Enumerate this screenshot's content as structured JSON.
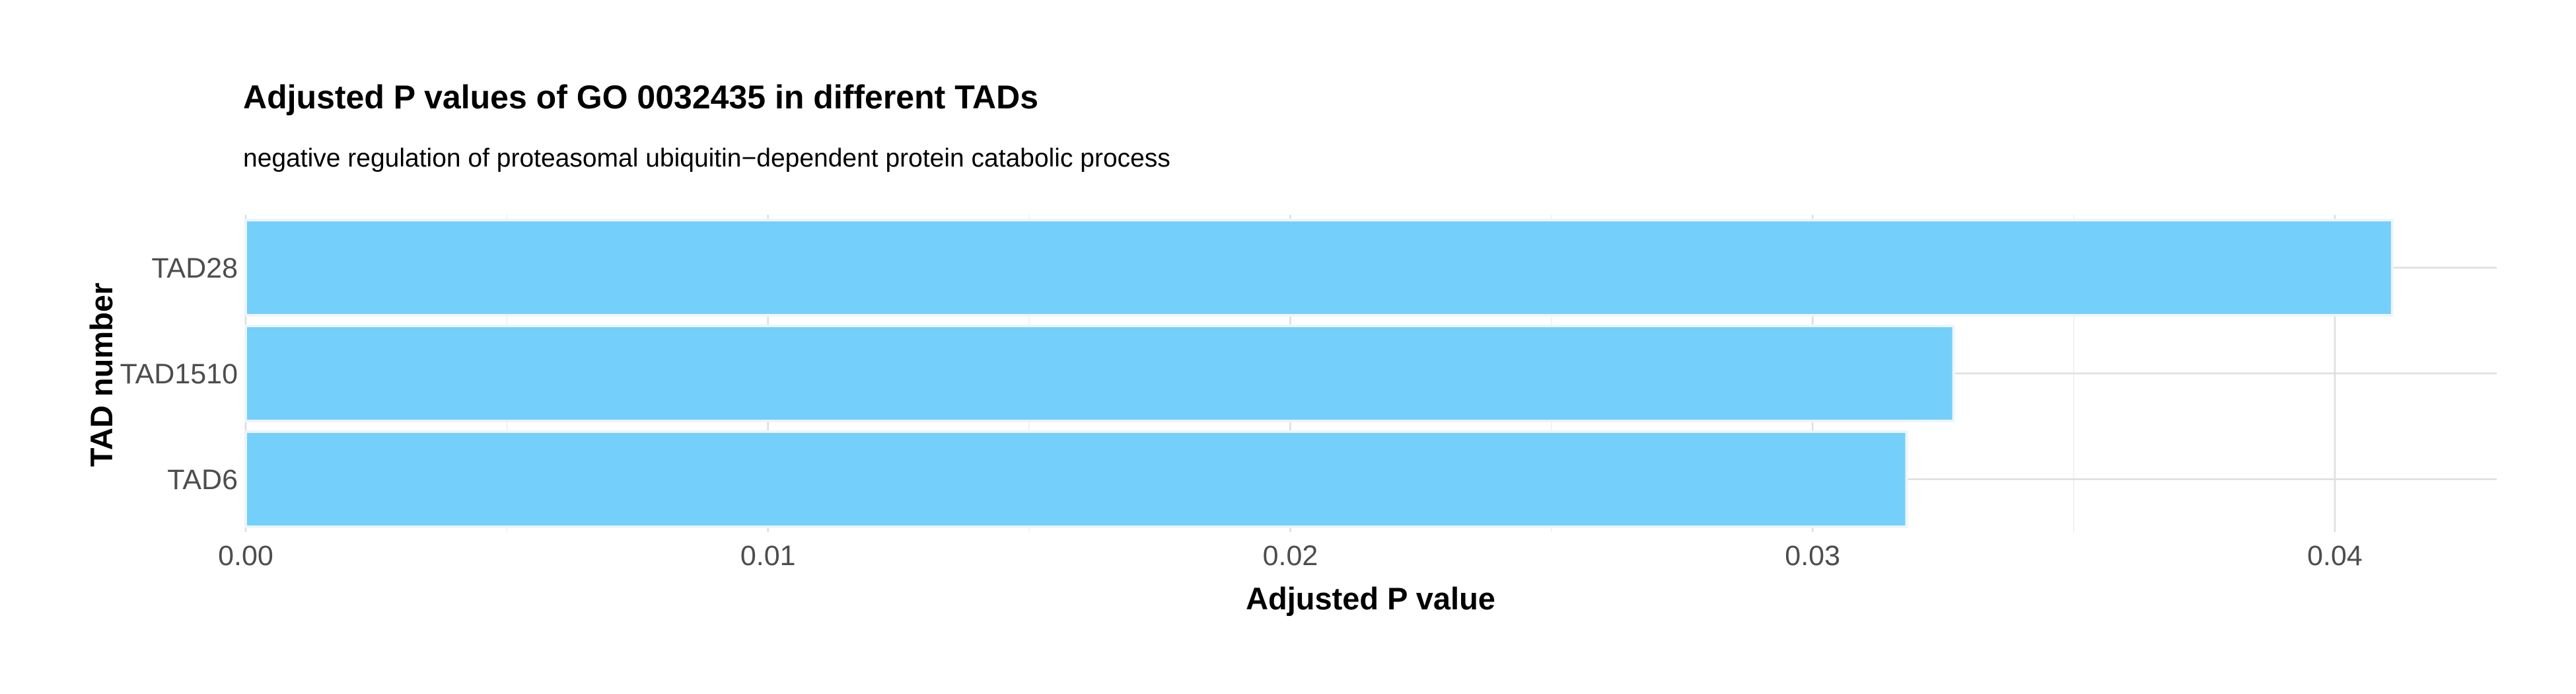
{
  "chart_data": {
    "type": "bar",
    "orientation": "horizontal",
    "title": "Adjusted P values of GO 0032435 in different TADs",
    "subtitle": "negative regulation of proteasomal ubiquitin−dependent protein catabolic process",
    "xlabel": "Adjusted P value",
    "ylabel": "TAD number",
    "categories": [
      "TAD28",
      "TAD1510",
      "TAD6"
    ],
    "values": [
      0.0411,
      0.0327,
      0.0318
    ],
    "xlim": [
      0.0,
      0.0431
    ],
    "x_ticks": [
      0.0,
      0.01,
      0.02,
      0.03,
      0.04
    ],
    "x_tick_labels": [
      "0.00",
      "0.01",
      "0.02",
      "0.03",
      "0.04"
    ],
    "bar_color": "#74CFFB",
    "bar_outline_color": "#EEF5FA",
    "grid": true,
    "legend": "none"
  }
}
